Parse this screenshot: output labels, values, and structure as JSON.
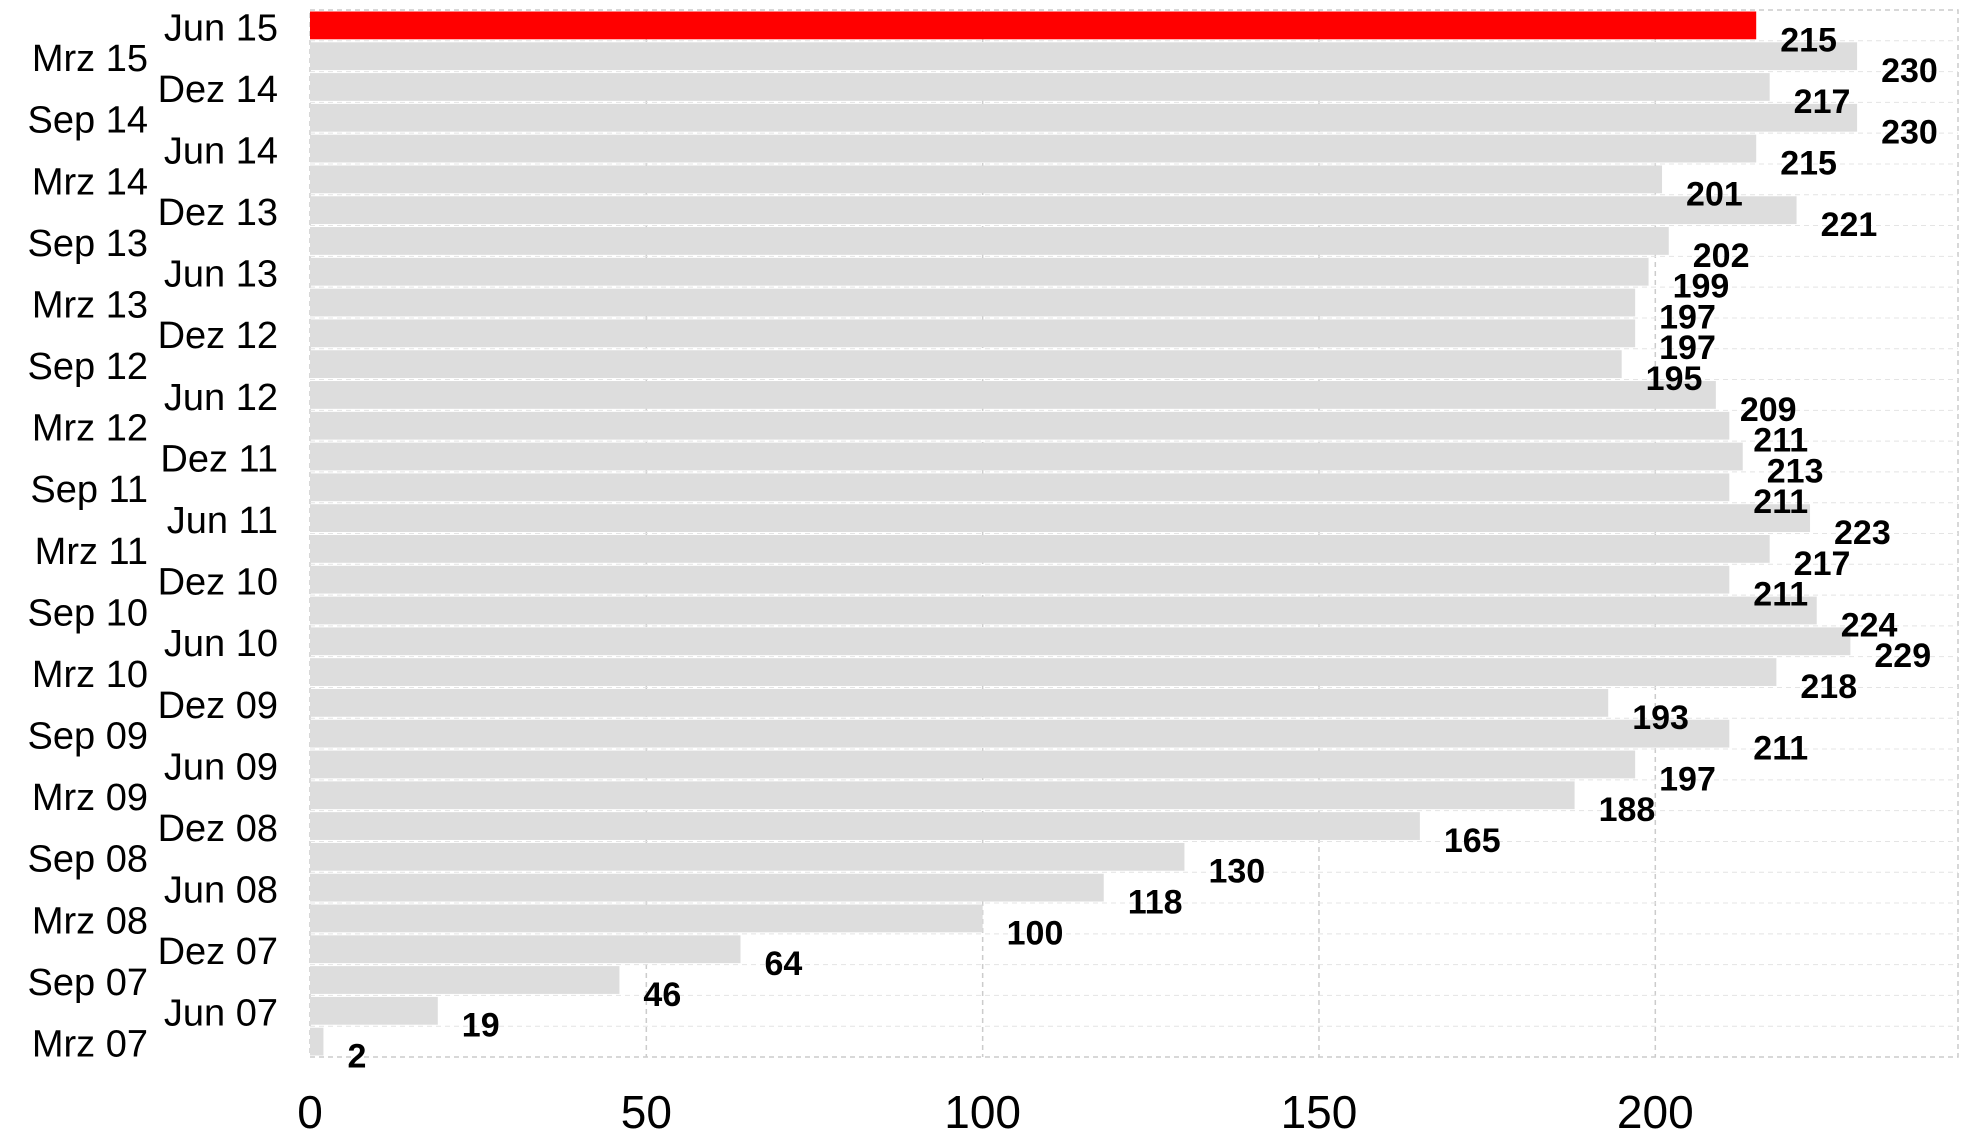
{
  "chart_data": {
    "type": "bar",
    "orientation": "horizontal",
    "categories": [
      "Jun 15",
      "Mrz 15",
      "Dez 14",
      "Sep 14",
      "Jun 14",
      "Mrz 14",
      "Dez 13",
      "Sep 13",
      "Jun 13",
      "Mrz 13",
      "Dez 12",
      "Sep 12",
      "Jun 12",
      "Mrz 12",
      "Dez 11",
      "Sep 11",
      "Jun 11",
      "Mrz 11",
      "Dez 10",
      "Sep 10",
      "Jun 10",
      "Mrz 10",
      "Dez 09",
      "Sep 09",
      "Jun 09",
      "Mrz 09",
      "Dez 08",
      "Sep 08",
      "Jun 08",
      "Mrz 08",
      "Dez 07",
      "Sep 07",
      "Jun 07",
      "Mrz 07"
    ],
    "values": [
      215,
      230,
      217,
      230,
      215,
      201,
      221,
      202,
      199,
      197,
      197,
      195,
      209,
      211,
      213,
      211,
      223,
      217,
      211,
      224,
      229,
      218,
      193,
      211,
      197,
      188,
      165,
      130,
      118,
      100,
      64,
      46,
      19,
      2
    ],
    "highlight_index": 0,
    "colors": {
      "highlight": "#ff0000",
      "bar": "#dddddd",
      "grid": "#cccccc"
    },
    "xlim": [
      0,
      245
    ],
    "xticks": [
      0,
      50,
      100,
      150,
      200
    ],
    "grid": true,
    "title": "",
    "xlabel": "",
    "ylabel": ""
  }
}
